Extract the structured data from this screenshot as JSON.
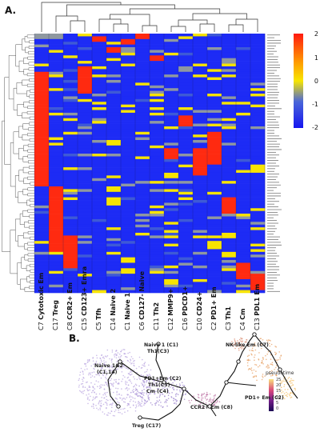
{
  "panels": {
    "a": "A.",
    "b": "B."
  },
  "heatmap": {
    "colorbar_ticks": [
      "2",
      "1",
      "0",
      "-1",
      "-2"
    ],
    "colors": {
      "high": "#ff2a10",
      "mid": "#f7e400",
      "low": "#1d2bf5"
    },
    "clusters": [
      {
        "code": "C7",
        "name": "Cytotoxic Em"
      },
      {
        "code": "C17",
        "name": "Treg"
      },
      {
        "code": "C8",
        "name": "CCR2+ Em"
      },
      {
        "code": "C15",
        "name": "CD123+ Emra"
      },
      {
        "code": "C5",
        "name": "Tfh"
      },
      {
        "code": "C14",
        "name": "Naive 2"
      },
      {
        "code": "C1",
        "name": "Naive 1"
      },
      {
        "code": "C6",
        "name": "CD127- Naive"
      },
      {
        "code": "C11",
        "name": "Th2"
      },
      {
        "code": "C12",
        "name": "MMP9+"
      },
      {
        "code": "C16",
        "name": "PDCD1+"
      },
      {
        "code": "C10",
        "name": "CD24+"
      },
      {
        "code": "C2",
        "name": "PD1+ Em"
      },
      {
        "code": "C3",
        "name": "Th1"
      },
      {
        "code": "C4",
        "name": "Cm"
      },
      {
        "code": "C13",
        "name": "PDL1 Em"
      }
    ]
  },
  "trajectory": {
    "annotations": {
      "naive1": "Naive 1 (C1)",
      "th1_c3": "Th1(C3)",
      "naive12": "Naive 1&2",
      "naive12_clusters": "(C1,14)",
      "pd1_em": "PD1+Em (C2)",
      "th1": "Th1(C3)",
      "cm": "Cm (C4)",
      "ccr2": "CCR2+ Em (C8)",
      "treg": "Treg (C17)",
      "nk": "NK-like Em (C7)",
      "pd1_em_right": "PD1+ Em (C2)"
    },
    "legend": {
      "title": "pseudotime",
      "ticks": [
        "25",
        "20",
        "15",
        "10",
        "5",
        "0"
      ]
    }
  }
}
